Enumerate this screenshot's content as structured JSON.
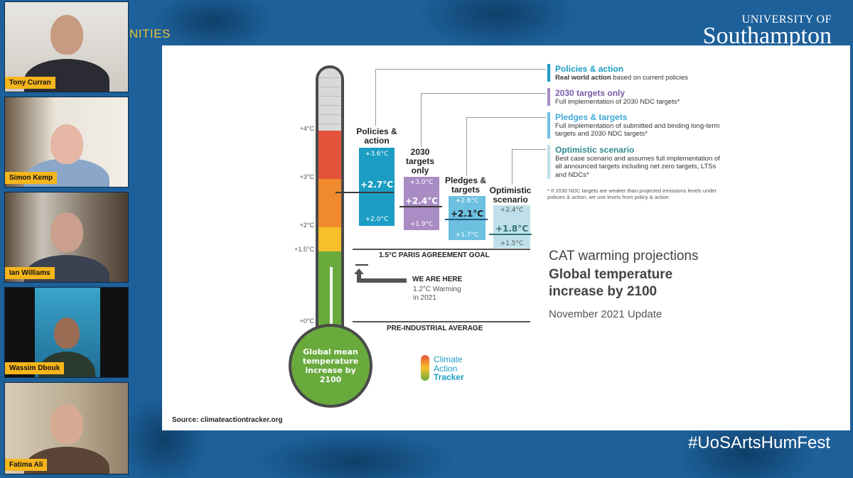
{
  "header": {
    "brand_fragment": "NITIES",
    "logo_small": "UNIVERSITY OF",
    "logo_big": "Southampton",
    "hashtag": "#UoSArtsHumFest"
  },
  "participants": [
    {
      "name": "Tony Curran"
    },
    {
      "name": "Simon Kemp"
    },
    {
      "name": "Ian Williams"
    },
    {
      "name": "Wassim Dbouk"
    },
    {
      "name": "Fatima Ali"
    }
  ],
  "slide": {
    "thermometer": {
      "ticks": [
        "+4°C",
        "+3°C",
        "+2°C",
        "+1.5°C",
        "+0°C"
      ],
      "bulb_text": "Global mean temperature increase by 2100",
      "band_colors": [
        "#e4543a",
        "#f08a2c",
        "#f5c02a",
        "#f2dc4a",
        "#6aaa3d"
      ]
    },
    "scenarios": [
      {
        "title": "Policies & action",
        "high": "+3.6°C",
        "mid": "+2.7°C",
        "low": "+2.0°C",
        "color": "#1b9dc4"
      },
      {
        "title": "2030 targets only",
        "high": "+3.0°C",
        "mid": "+2.4°C",
        "low": "+1.9°C",
        "color": "#a98cc4"
      },
      {
        "title": "Pledges & targets",
        "high": "+2.6°C",
        "mid": "+2.1°C",
        "low": "+1.7°C",
        "color": "#6cc0e0"
      },
      {
        "title": "Optimistic scenario",
        "high": "+2.4°C",
        "mid": "+1.8°C",
        "low": "+1.5°C",
        "color": "#bfe0ea"
      }
    ],
    "paris_goal": "1.5°C PARIS AGREEMENT GOAL",
    "we_are_here": "WE ARE HERE",
    "we_are_here_sub1": "1.2°C Warming",
    "we_are_here_sub2": "in 2021",
    "pre_industrial": "PRE-INDUSTRIAL AVERAGE",
    "legend": [
      {
        "title": "Policies & action",
        "desc_bold": "Real world action",
        "desc": " based on current policies",
        "color": "#1b9dc4"
      },
      {
        "title": "2030 targets only",
        "desc_bold": "",
        "desc": "Full implementation of 2030 NDC targets*",
        "color": "#7a5aa6"
      },
      {
        "title": "Pledges & targets",
        "desc_bold": "",
        "desc": "Full implementation of submitted and binding long-term targets and 2030 NDC targets*",
        "color": "#3fa8d8"
      },
      {
        "title": "Optimistic scenario",
        "desc_bold": "",
        "desc": "Best case scenario and assumes full implementation of all announced targets including net zero targets, LTSs and NDCs*",
        "color": "#2f8a8f"
      }
    ],
    "footnote": "* If 2030 NDC targets are weaker than projected emissions levels under policies & action, we use levels from policy & action",
    "title_line1": "CAT warming projections",
    "title_line2": "Global temperature",
    "title_line3": "increase by 2100",
    "update": "November 2021 Update",
    "cat_logo_1": "Climate",
    "cat_logo_2": "Action",
    "cat_logo_3": "Tracker",
    "source": "Source: climateactiontracker.org"
  }
}
